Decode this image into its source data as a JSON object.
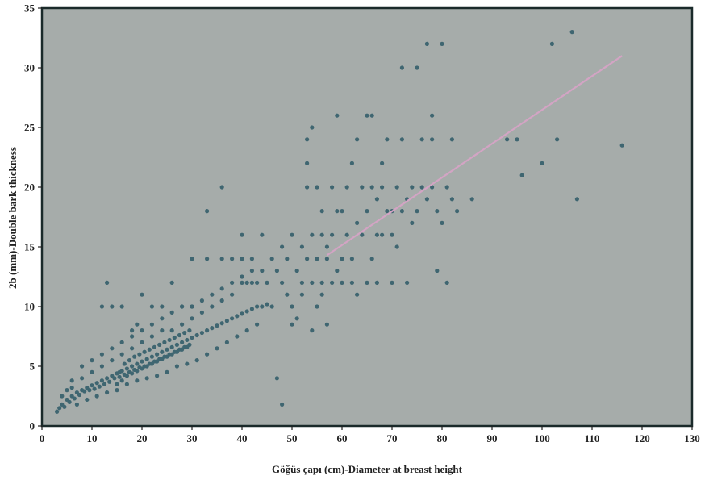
{
  "chart_data": {
    "type": "scatter",
    "title": "",
    "xlabel": "Göğüs çapı (cm)-Diameter at breast height",
    "ylabel": "2b (mm)-Double bark thickness",
    "xlim": [
      0,
      130
    ],
    "ylim": [
      0,
      35
    ],
    "xticks": [
      "0",
      "10",
      "20",
      "30",
      "40",
      "50",
      "60",
      "70",
      "80",
      "90",
      "100",
      "110",
      "120",
      "130"
    ],
    "yticks": [
      "0",
      "5",
      "10",
      "15",
      "20",
      "25",
      "30",
      "35"
    ],
    "grid": false,
    "legend": "none",
    "colors": {
      "plot_background": "#a6acaa",
      "points": "#3f6671",
      "trend_line": "#d3a4c4"
    },
    "trend_line": {
      "x": [
        57,
        116
      ],
      "y": [
        14.3,
        31
      ]
    },
    "series": [
      {
        "points": [
          [
            3,
            1.2
          ],
          [
            3.5,
            1.5
          ],
          [
            4,
            1.8
          ],
          [
            4.5,
            1.6
          ],
          [
            5,
            2.2
          ],
          [
            5.5,
            2
          ],
          [
            6,
            2.5
          ],
          [
            6.5,
            2.3
          ],
          [
            7,
            2.8
          ],
          [
            7.5,
            2.6
          ],
          [
            8,
            3
          ],
          [
            8.5,
            2.9
          ],
          [
            9,
            3.2
          ],
          [
            9.5,
            3
          ],
          [
            10,
            3.4
          ],
          [
            10.5,
            3.1
          ],
          [
            11,
            3.6
          ],
          [
            11.5,
            3.3
          ],
          [
            12,
            3.8
          ],
          [
            12.5,
            3.5
          ],
          [
            13,
            4
          ],
          [
            13.5,
            3.7
          ],
          [
            14,
            4.2
          ],
          [
            14.5,
            4
          ],
          [
            15,
            4.4
          ],
          [
            15.5,
            4.1
          ],
          [
            16,
            4.6
          ],
          [
            16.5,
            4.3
          ],
          [
            17,
            4.8
          ],
          [
            17.5,
            4.5
          ],
          [
            18,
            5
          ],
          [
            18.5,
            4.7
          ],
          [
            19,
            5.2
          ],
          [
            19.5,
            4.9
          ],
          [
            20,
            5.4
          ],
          [
            20.5,
            5
          ],
          [
            21,
            5.6
          ],
          [
            21.5,
            5.2
          ],
          [
            22,
            5.8
          ],
          [
            22.5,
            5.4
          ],
          [
            23,
            6
          ],
          [
            23.5,
            5.6
          ],
          [
            24,
            6.2
          ],
          [
            24.5,
            5.8
          ],
          [
            25,
            6.4
          ],
          [
            25.5,
            6
          ],
          [
            26,
            6.6
          ],
          [
            26.5,
            6.2
          ],
          [
            27,
            6.8
          ],
          [
            27.5,
            6.4
          ],
          [
            28,
            7
          ],
          [
            28.5,
            6.6
          ],
          [
            29,
            7.2
          ],
          [
            29.5,
            6.8
          ],
          [
            30,
            7.4
          ],
          [
            31,
            7.6
          ],
          [
            32,
            7.8
          ],
          [
            33,
            8
          ],
          [
            34,
            8.2
          ],
          [
            35,
            8.4
          ],
          [
            36,
            8.6
          ],
          [
            37,
            8.8
          ],
          [
            38,
            9
          ],
          [
            39,
            9.2
          ],
          [
            40,
            9.4
          ],
          [
            41,
            9.6
          ],
          [
            42,
            9.8
          ],
          [
            43,
            10
          ],
          [
            44,
            10
          ],
          [
            45,
            10.2
          ],
          [
            4,
            2.5
          ],
          [
            5,
            3
          ],
          [
            6,
            3.2
          ],
          [
            7,
            1.8
          ],
          [
            8,
            4
          ],
          [
            9,
            2.2
          ],
          [
            10,
            4.5
          ],
          [
            11,
            2.5
          ],
          [
            12,
            5
          ],
          [
            13,
            2.8
          ],
          [
            14,
            5.5
          ],
          [
            15,
            3
          ],
          [
            16,
            6
          ],
          [
            17,
            3.5
          ],
          [
            18,
            6.5
          ],
          [
            19,
            3.8
          ],
          [
            20,
            7
          ],
          [
            21,
            4
          ],
          [
            22,
            7.5
          ],
          [
            23,
            4.2
          ],
          [
            24,
            8
          ],
          [
            25,
            4.5
          ],
          [
            26,
            8
          ],
          [
            27,
            5
          ],
          [
            28,
            8.5
          ],
          [
            29,
            5.2
          ],
          [
            30,
            9
          ],
          [
            31,
            5.5
          ],
          [
            32,
            9.5
          ],
          [
            33,
            6
          ],
          [
            34,
            10
          ],
          [
            35,
            6.5
          ],
          [
            36,
            10.5
          ],
          [
            37,
            7
          ],
          [
            38,
            11
          ],
          [
            39,
            7.5
          ],
          [
            40,
            12
          ],
          [
            41,
            8
          ],
          [
            42,
            12
          ],
          [
            43,
            8.5
          ],
          [
            6,
            3.8
          ],
          [
            8,
            5
          ],
          [
            10,
            5.5
          ],
          [
            12,
            6
          ],
          [
            14,
            6.5
          ],
          [
            16,
            7
          ],
          [
            18,
            7.5
          ],
          [
            20,
            8
          ],
          [
            22,
            8.5
          ],
          [
            24,
            9
          ],
          [
            26,
            9.5
          ],
          [
            28,
            10
          ],
          [
            30,
            10
          ],
          [
            32,
            10.5
          ],
          [
            34,
            11
          ],
          [
            36,
            11.5
          ],
          [
            38,
            12
          ],
          [
            40,
            12.5
          ],
          [
            42,
            13
          ],
          [
            44,
            13
          ],
          [
            12,
            10
          ],
          [
            13,
            12
          ],
          [
            14,
            10
          ],
          [
            16,
            10
          ],
          [
            18,
            8
          ],
          [
            19,
            8.5
          ],
          [
            20,
            11
          ],
          [
            22,
            10
          ],
          [
            24,
            10
          ],
          [
            26,
            12
          ],
          [
            28,
            10
          ],
          [
            30,
            10
          ],
          [
            30,
            14
          ],
          [
            33,
            18
          ],
          [
            33,
            14
          ],
          [
            36,
            14
          ],
          [
            36,
            20
          ],
          [
            38,
            14
          ],
          [
            40,
            14
          ],
          [
            40,
            16
          ],
          [
            41,
            12
          ],
          [
            42,
            14
          ],
          [
            43,
            12
          ],
          [
            44,
            16
          ],
          [
            45,
            12
          ],
          [
            46,
            10
          ],
          [
            46,
            14
          ],
          [
            47,
            13
          ],
          [
            47,
            4
          ],
          [
            48,
            12
          ],
          [
            48,
            15
          ],
          [
            48,
            1.8
          ],
          [
            49,
            11
          ],
          [
            49,
            14
          ],
          [
            50,
            10
          ],
          [
            50,
            16
          ],
          [
            50,
            8.5
          ],
          [
            51,
            13
          ],
          [
            51,
            9
          ],
          [
            52,
            12
          ],
          [
            52,
            15
          ],
          [
            52,
            11
          ],
          [
            53,
            14
          ],
          [
            53,
            22
          ],
          [
            53,
            24
          ],
          [
            53,
            20
          ],
          [
            54,
            12
          ],
          [
            54,
            16
          ],
          [
            54,
            25
          ],
          [
            54,
            8
          ],
          [
            55,
            10
          ],
          [
            55,
            14
          ],
          [
            55,
            20
          ],
          [
            56,
            12
          ],
          [
            56,
            16
          ],
          [
            56,
            18
          ],
          [
            56,
            11
          ],
          [
            57,
            14
          ],
          [
            57,
            15
          ],
          [
            57,
            8.5
          ],
          [
            58,
            12
          ],
          [
            58,
            16
          ],
          [
            58,
            20
          ],
          [
            59,
            13
          ],
          [
            59,
            18
          ],
          [
            59,
            26
          ],
          [
            60,
            12
          ],
          [
            60,
            14
          ],
          [
            60,
            18
          ],
          [
            61,
            16
          ],
          [
            61,
            20
          ],
          [
            62,
            12
          ],
          [
            62,
            14
          ],
          [
            62,
            22
          ],
          [
            63,
            17
          ],
          [
            63,
            24
          ],
          [
            63,
            11
          ],
          [
            64,
            16
          ],
          [
            64,
            20
          ],
          [
            65,
            12
          ],
          [
            65,
            18
          ],
          [
            65,
            26
          ],
          [
            66,
            14
          ],
          [
            66,
            20
          ],
          [
            66,
            26
          ],
          [
            67,
            16
          ],
          [
            67,
            19
          ],
          [
            67,
            12
          ],
          [
            68,
            20
          ],
          [
            68,
            22
          ],
          [
            68,
            16
          ],
          [
            69,
            18
          ],
          [
            69,
            24
          ],
          [
            70,
            16
          ],
          [
            70,
            18
          ],
          [
            70,
            12
          ],
          [
            71,
            20
          ],
          [
            71,
            15
          ],
          [
            72,
            18
          ],
          [
            72,
            24
          ],
          [
            72,
            30
          ],
          [
            73,
            19
          ],
          [
            73,
            12
          ],
          [
            74,
            20
          ],
          [
            74,
            17
          ],
          [
            75,
            18
          ],
          [
            75,
            30
          ],
          [
            76,
            20
          ],
          [
            76,
            24
          ],
          [
            77,
            19
          ],
          [
            77,
            32
          ],
          [
            78,
            24
          ],
          [
            78,
            26
          ],
          [
            78,
            20
          ],
          [
            79,
            18
          ],
          [
            79,
            13
          ],
          [
            80,
            17
          ],
          [
            80,
            32
          ],
          [
            81,
            20
          ],
          [
            81,
            12
          ],
          [
            82,
            24
          ],
          [
            82,
            19
          ],
          [
            83,
            18
          ],
          [
            86,
            19
          ],
          [
            93,
            24
          ],
          [
            95,
            24
          ],
          [
            96,
            21
          ],
          [
            100,
            22
          ],
          [
            102,
            32
          ],
          [
            103,
            24
          ],
          [
            106,
            33
          ],
          [
            107,
            19
          ],
          [
            116,
            23.5
          ],
          [
            15,
            3.5
          ],
          [
            15.5,
            4.5
          ],
          [
            16,
            3.8
          ],
          [
            16.5,
            5.2
          ],
          [
            17,
            4.2
          ],
          [
            17.5,
            5.5
          ],
          [
            18,
            4.4
          ],
          [
            18.5,
            5.8
          ],
          [
            19,
            4.6
          ],
          [
            19.5,
            6
          ],
          [
            20,
            4.8
          ],
          [
            20.5,
            6.2
          ],
          [
            21,
            5
          ],
          [
            21.5,
            6.4
          ],
          [
            22,
            5.2
          ],
          [
            22.5,
            6.6
          ],
          [
            23,
            5.4
          ],
          [
            23.5,
            6.8
          ],
          [
            24,
            5.6
          ],
          [
            24.5,
            7
          ],
          [
            25,
            5.8
          ],
          [
            25.5,
            7.2
          ],
          [
            26,
            6
          ],
          [
            26.5,
            7.4
          ],
          [
            27,
            6.2
          ],
          [
            27.5,
            7.6
          ],
          [
            28,
            6.4
          ],
          [
            28.5,
            7.8
          ],
          [
            29,
            6.6
          ],
          [
            29.5,
            8
          ]
        ]
      }
    ]
  }
}
